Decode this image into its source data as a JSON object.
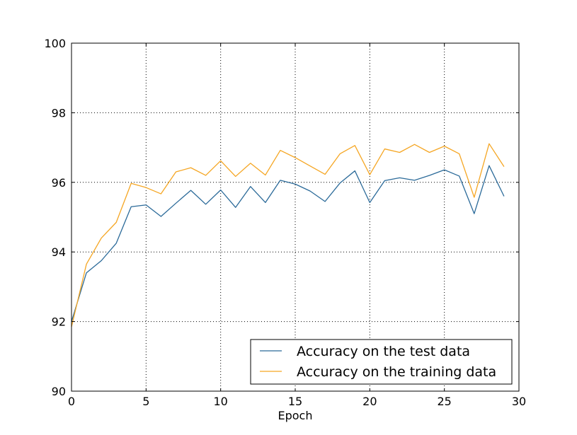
{
  "chart_data": {
    "type": "line",
    "title": "",
    "xlabel": "Epoch",
    "ylabel": "",
    "xlim": [
      0,
      30
    ],
    "ylim": [
      90,
      100
    ],
    "xticks": [
      0,
      5,
      10,
      15,
      20,
      25,
      30
    ],
    "yticks": [
      90,
      92,
      94,
      96,
      98,
      100
    ],
    "grid": true,
    "legend_position": "lower-right",
    "x": [
      0,
      1,
      2,
      3,
      4,
      5,
      6,
      7,
      8,
      9,
      10,
      11,
      12,
      13,
      14,
      15,
      16,
      17,
      18,
      19,
      20,
      21,
      22,
      23,
      24,
      25,
      26,
      27,
      28,
      29
    ],
    "series": [
      {
        "name": "Accuracy on the test data",
        "color": "#2b6a99",
        "values": [
          92.0,
          93.4,
          93.75,
          94.25,
          95.3,
          95.35,
          95.02,
          95.4,
          95.77,
          95.37,
          95.78,
          95.28,
          95.88,
          95.42,
          96.06,
          95.95,
          95.75,
          95.45,
          95.98,
          96.33,
          95.42,
          96.05,
          96.13,
          96.06,
          96.2,
          96.36,
          96.18,
          95.1,
          96.48,
          95.6
        ]
      },
      {
        "name": "Accuracy on the training data",
        "color": "#f5a623",
        "values": [
          91.85,
          93.65,
          94.4,
          94.85,
          95.97,
          95.85,
          95.67,
          96.3,
          96.42,
          96.2,
          96.62,
          96.17,
          96.55,
          96.21,
          96.92,
          96.71,
          96.47,
          96.23,
          96.82,
          97.06,
          96.22,
          96.96,
          96.86,
          97.09,
          96.86,
          97.04,
          96.82,
          95.57,
          97.11,
          96.45
        ]
      }
    ]
  }
}
